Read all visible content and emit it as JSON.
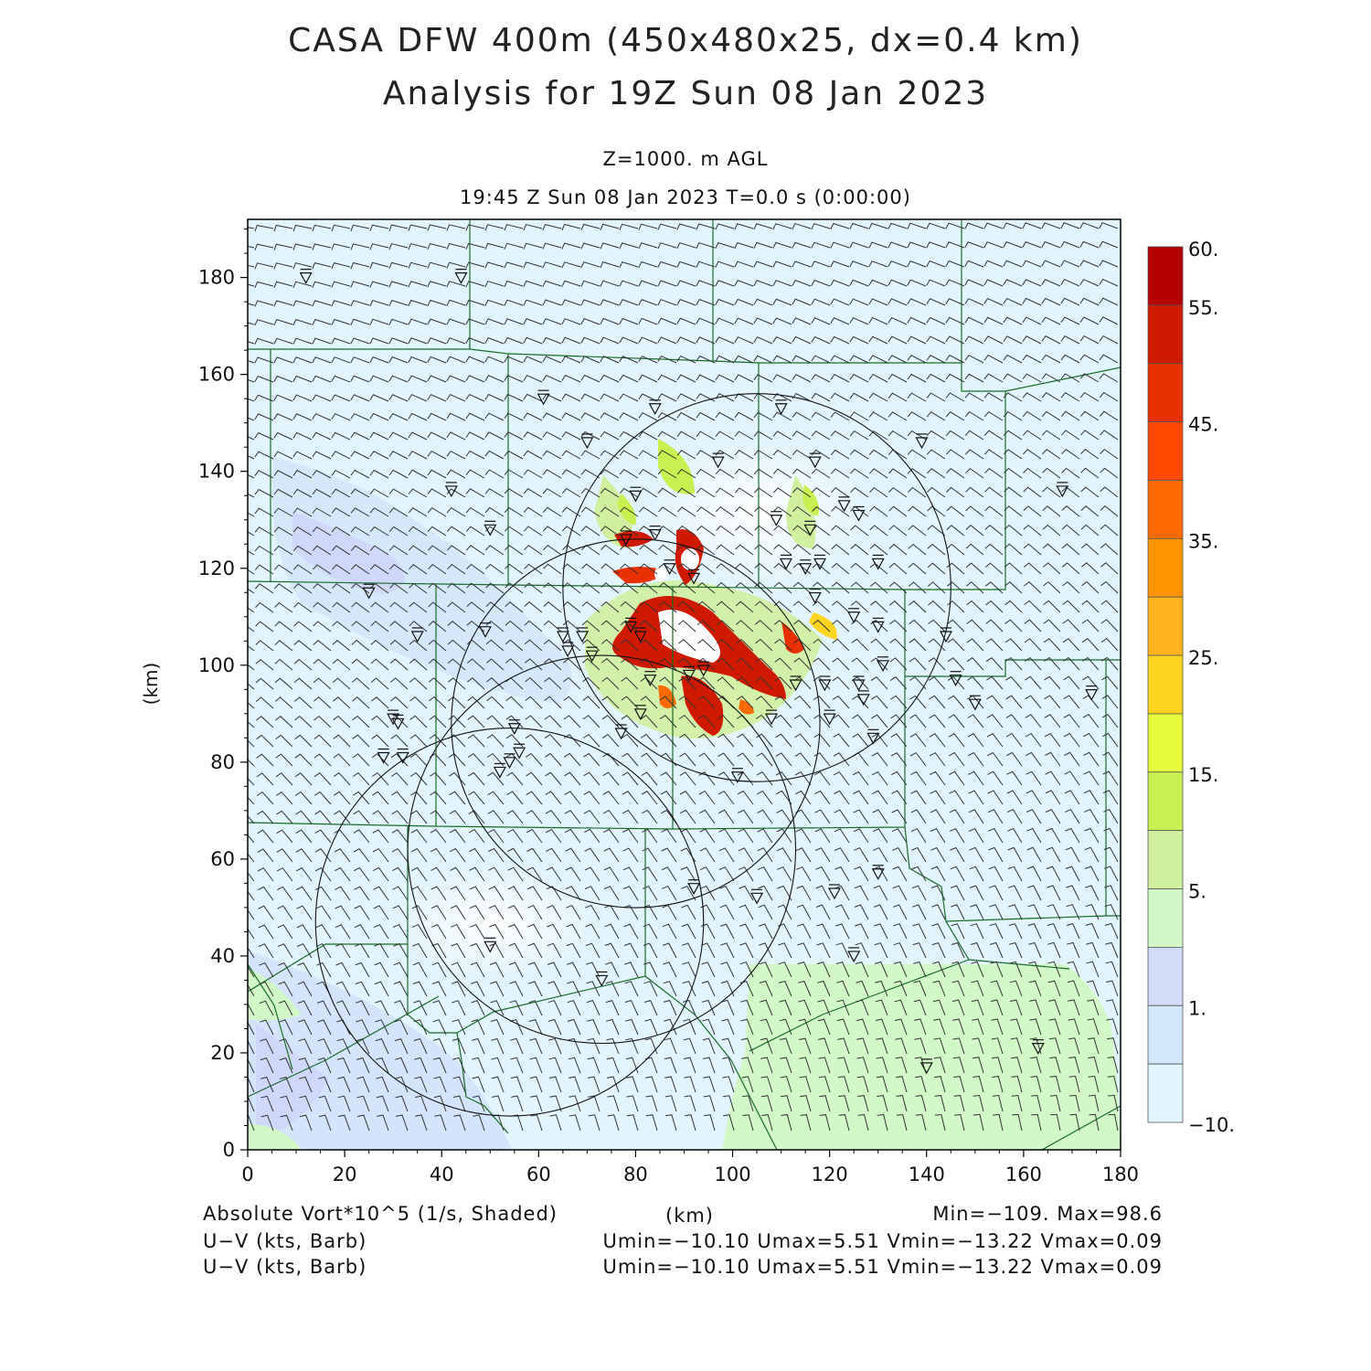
{
  "header": {
    "title_line1": "CASA DFW 400m (450x480x25, dx=0.4 km)",
    "title_line2": "Analysis for 19Z Sun 08 Jan 2023",
    "level": "Z=1000. m AGL",
    "time": "19:45 Z Sun 08 Jan 2023    T=0.0 s (0:00:00)"
  },
  "axes": {
    "x_ticks": [
      "0",
      "20",
      "40",
      "60",
      "80",
      "100",
      "120",
      "140",
      "160",
      "180"
    ],
    "y_ticks": [
      "0",
      "20",
      "40",
      "60",
      "80",
      "100",
      "120",
      "140",
      "160",
      "180"
    ],
    "x_label": "(km)",
    "y_label": "(km)",
    "xlim": [
      0,
      180
    ],
    "ylim": [
      0,
      192
    ]
  },
  "colorbar": {
    "labels": [
      "60.",
      "55.",
      "45.",
      "35.",
      "25.",
      "15.",
      "5.",
      "1.",
      "−10."
    ],
    "colors": [
      "#b40000",
      "#d01a00",
      "#e83000",
      "#ff4800",
      "#ff6a00",
      "#ff9400",
      "#ffb41e",
      "#ffd41e",
      "#e8fa3c",
      "#c8f050",
      "#d0f0a0",
      "#d2f8c8",
      "#d2dcf8",
      "#d2e8fa",
      "#e2f4fc"
    ]
  },
  "footer": {
    "field1": "Absolute Vort*10^5 (1/s, Shaded)",
    "units": "(km)",
    "minmax": "Min=−109. Max=98.6",
    "field2": "U−V (kts, Barb)",
    "field3": "U−V (kts, Barb)",
    "uv_stats": "Umin=−10.10 Umax=5.51 Vmin=−13.22 Vmax=0.09"
  },
  "map": {
    "radar_rings": [
      {
        "cx": 105,
        "cy": 116,
        "r": 40
      },
      {
        "cx": 80,
        "cy": 88,
        "r": 38
      },
      {
        "cx": 73,
        "cy": 62,
        "r": 40
      },
      {
        "cx": 54,
        "cy": 47,
        "r": 40
      }
    ],
    "stations": [
      [
        12,
        180
      ],
      [
        44,
        180
      ],
      [
        61,
        155
      ],
      [
        84,
        153
      ],
      [
        110,
        153
      ],
      [
        139,
        146
      ],
      [
        70,
        146
      ],
      [
        97,
        142
      ],
      [
        117,
        142
      ],
      [
        42,
        136
      ],
      [
        80,
        135
      ],
      [
        123,
        133
      ],
      [
        168,
        136
      ],
      [
        126,
        131
      ],
      [
        50,
        128
      ],
      [
        116,
        128
      ],
      [
        78,
        126
      ],
      [
        84,
        127
      ],
      [
        87,
        120
      ],
      [
        92,
        118
      ],
      [
        111,
        121
      ],
      [
        130,
        121
      ],
      [
        115,
        120
      ],
      [
        118,
        121
      ],
      [
        109,
        130
      ],
      [
        25,
        115
      ],
      [
        117,
        114
      ],
      [
        35,
        106
      ],
      [
        49,
        107
      ],
      [
        65,
        106
      ],
      [
        69,
        106
      ],
      [
        81,
        106
      ],
      [
        71,
        102
      ],
      [
        79,
        108
      ],
      [
        66,
        103
      ],
      [
        83,
        97
      ],
      [
        91,
        98
      ],
      [
        94,
        99
      ],
      [
        113,
        96
      ],
      [
        119,
        96
      ],
      [
        126,
        96
      ],
      [
        127,
        93
      ],
      [
        144,
        106
      ],
      [
        146,
        97
      ],
      [
        125,
        110
      ],
      [
        130,
        108
      ],
      [
        131,
        100
      ],
      [
        150,
        92
      ],
      [
        174,
        94
      ],
      [
        30,
        89
      ],
      [
        31,
        88
      ],
      [
        28,
        81
      ],
      [
        32,
        81
      ],
      [
        55,
        87
      ],
      [
        56,
        82
      ],
      [
        52,
        78
      ],
      [
        54,
        80
      ],
      [
        77,
        86
      ],
      [
        81,
        90
      ],
      [
        120,
        89
      ],
      [
        129,
        85
      ],
      [
        108,
        89
      ],
      [
        101,
        77
      ],
      [
        92,
        54
      ],
      [
        105,
        52
      ],
      [
        121,
        53
      ],
      [
        130,
        57
      ],
      [
        50,
        42
      ],
      [
        73,
        35
      ],
      [
        125,
        40
      ],
      [
        163,
        21
      ],
      [
        140,
        17
      ]
    ]
  }
}
